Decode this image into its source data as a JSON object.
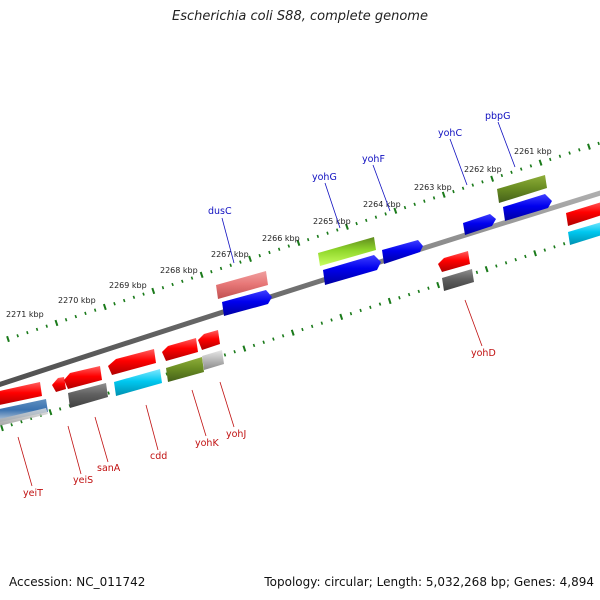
{
  "title": "Escherichia coli S88, complete genome",
  "footer": {
    "accession": "Accession: NC_011742",
    "summary": "Topology: circular; Length: 5,032,268 bp; Genes: 4,894"
  },
  "scale_ticks": [
    "2271 kbp",
    "2270 kbp",
    "2269 kbp",
    "2268 kbp",
    "2267 kbp",
    "2266 kbp",
    "2265 kbp",
    "2264 kbp",
    "2263 kbp",
    "2262 kbp",
    "2261 kbp"
  ],
  "genes_forward": [
    "dusC",
    "yohG",
    "yohF",
    "yohC",
    "pbpG"
  ],
  "genes_reverse": [
    "yohD",
    "yeiT",
    "yeiS",
    "sanA",
    "cdd",
    "yohK",
    "yohJ"
  ],
  "colors": {
    "forward_label": "#1010c0",
    "reverse_label": "#c01010",
    "backbone": "#808080",
    "tick": "#1a7a1a",
    "red_gene": "#ff0000",
    "blue_gene": "#0000ee",
    "olive_gene": "#6b8e23",
    "cyan_gene": "#00c8f0",
    "gray_gene": "#606060",
    "pink_gene": "#e87878"
  }
}
